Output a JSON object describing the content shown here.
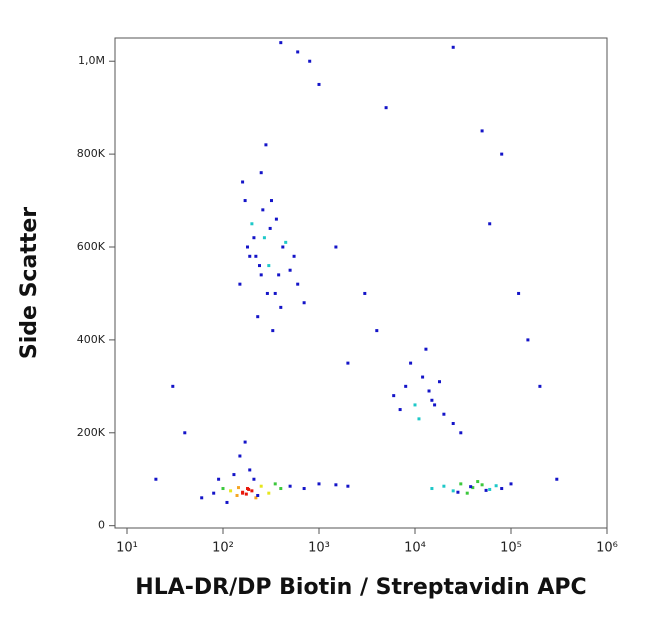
{
  "chart_data": {
    "type": "scatter",
    "xlabel": "HLA-DR/DP Biotin / Streptavidin APC",
    "ylabel": "Side Scatter",
    "xscale": "log",
    "xlim": [
      7.5,
      1000000
    ],
    "ylim": [
      -5000,
      1050000
    ],
    "xticks": [
      {
        "value": 10,
        "label": "10¹"
      },
      {
        "value": 100,
        "label": "10²"
      },
      {
        "value": 1000,
        "label": "10³"
      },
      {
        "value": 10000,
        "label": "10⁴"
      },
      {
        "value": 100000,
        "label": "10⁵"
      },
      {
        "value": 1000000,
        "label": "10⁶"
      }
    ],
    "yticks": [
      0,
      {
        "value": 200000,
        "label": "200K"
      },
      {
        "value": 400000,
        "label": "400K"
      },
      {
        "value": 600000,
        "label": "600K"
      },
      {
        "value": 800000,
        "label": "800K"
      },
      {
        "value": 1000000,
        "label": "1,0M"
      }
    ],
    "x": [
      150,
      180,
      200,
      220,
      250,
      270,
      300,
      320,
      350,
      400,
      450,
      500,
      600,
      700,
      250,
      280,
      230,
      260,
      310,
      190,
      170,
      380,
      420,
      330,
      290,
      240,
      210,
      360,
      550,
      160,
      60,
      80,
      100,
      120,
      140,
      160,
      180,
      200,
      220,
      250,
      300,
      350,
      400,
      150,
      170,
      190,
      130,
      110,
      90,
      210,
      230,
      160,
      175,
      185,
      145,
      500,
      700,
      1000,
      1500,
      2000,
      6000,
      8000,
      10000,
      12000,
      15000,
      20000,
      25000,
      9000,
      11000,
      14000,
      18000,
      30000,
      7000,
      13000,
      16000,
      15000,
      20000,
      25000,
      30000,
      35000,
      40000,
      50000,
      60000,
      70000,
      80000,
      45000,
      28000,
      38000,
      55000,
      100000,
      20,
      30,
      40,
      1500,
      3000,
      5000,
      50000,
      80000,
      120000,
      200000,
      300000,
      2000,
      4000,
      60000,
      1000,
      800,
      600,
      400,
      25000,
      150000
    ],
    "values": [
      520000,
      600000,
      650000,
      580000,
      540000,
      620000,
      560000,
      700000,
      500000,
      470000,
      610000,
      550000,
      520000,
      480000,
      760000,
      820000,
      450000,
      680000,
      640000,
      580000,
      700000,
      540000,
      600000,
      420000,
      500000,
      560000,
      620000,
      660000,
      580000,
      740000,
      60000,
      70000,
      80000,
      75000,
      65000,
      70000,
      80000,
      75000,
      60000,
      85000,
      70000,
      90000,
      80000,
      150000,
      180000,
      120000,
      110000,
      50000,
      100000,
      100000,
      65000,
      72000,
      68000,
      78000,
      82000,
      85000,
      80000,
      90000,
      88000,
      85000,
      280000,
      300000,
      260000,
      320000,
      270000,
      240000,
      220000,
      350000,
      230000,
      290000,
      310000,
      200000,
      250000,
      380000,
      260000,
      80000,
      85000,
      75000,
      90000,
      70000,
      82000,
      88000,
      78000,
      86000,
      80000,
      95000,
      72000,
      84000,
      76000,
      90000,
      100000,
      300000,
      200000,
      600000,
      500000,
      900000,
      850000,
      800000,
      500000,
      300000,
      100000,
      350000,
      420000,
      650000,
      950000,
      1000000,
      1020000,
      1040000,
      1030000,
      400000
    ],
    "colors": [
      "#1414c8",
      "#1414c8",
      "#1ec8c8",
      "#1414c8",
      "#1414c8",
      "#1ec8c8",
      "#1ec8c8",
      "#1414c8",
      "#1414c8",
      "#1414c8",
      "#1ec8c8",
      "#1414c8",
      "#1414c8",
      "#1414c8",
      "#1414c8",
      "#1414c8",
      "#1414c8",
      "#1414c8",
      "#1414c8",
      "#1414c8",
      "#1414c8",
      "#1414c8",
      "#1414c8",
      "#1414c8",
      "#1414c8",
      "#1414c8",
      "#1414c8",
      "#1414c8",
      "#1414c8",
      "#1414c8",
      "#1414c8",
      "#1414c8",
      "#3cc83c",
      "#e6e61e",
      "#f5a623",
      "#e8180c",
      "#e8180c",
      "#e8180c",
      "#f5a623",
      "#e6e61e",
      "#e6e61e",
      "#3cc83c",
      "#3cc83c",
      "#1414c8",
      "#1414c8",
      "#1414c8",
      "#1414c8",
      "#1414c8",
      "#1414c8",
      "#1414c8",
      "#1414c8",
      "#e8180c",
      "#e8180c",
      "#e8180c",
      "#f5a623",
      "#1414c8",
      "#1414c8",
      "#1414c8",
      "#1414c8",
      "#1414c8",
      "#1414c8",
      "#1414c8",
      "#1ec8c8",
      "#1414c8",
      "#1414c8",
      "#1414c8",
      "#1414c8",
      "#1414c8",
      "#1ec8c8",
      "#1414c8",
      "#1414c8",
      "#1414c8",
      "#1414c8",
      "#1414c8",
      "#1414c8",
      "#1ec8c8",
      "#1ec8c8",
      "#1ec8c8",
      "#3cc83c",
      "#3cc83c",
      "#3cc83c",
      "#3cc83c",
      "#1ec8c8",
      "#1ec8c8",
      "#1414c8",
      "#3cc83c",
      "#1414c8",
      "#1414c8",
      "#1414c8",
      "#1414c8",
      "#1414c8",
      "#1414c8",
      "#1414c8",
      "#1414c8",
      "#1414c8",
      "#1414c8",
      "#1414c8",
      "#1414c8",
      "#1414c8",
      "#1414c8",
      "#1414c8",
      "#1414c8",
      "#1414c8",
      "#1414c8",
      "#1414c8",
      "#1414c8",
      "#1414c8",
      "#1414c8",
      "#1414c8",
      "#1414c8"
    ]
  }
}
